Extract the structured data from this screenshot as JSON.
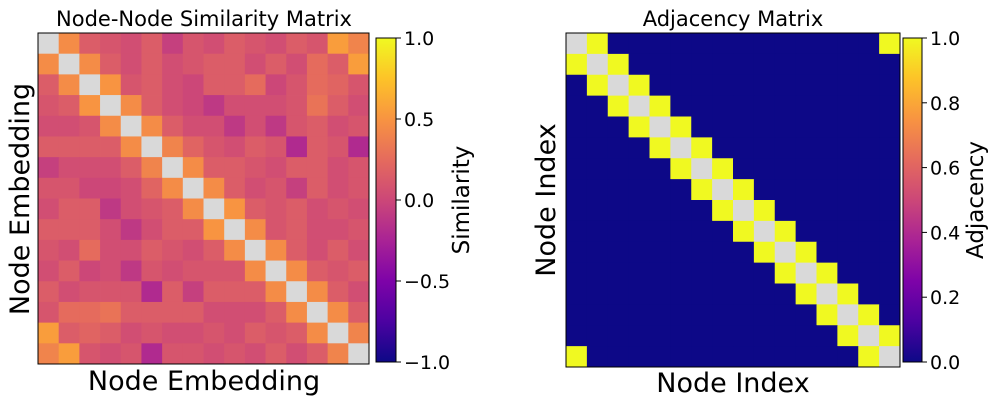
{
  "chart_data": [
    {
      "type": "heatmap",
      "title": "Node-Node Similarity Matrix",
      "xlabel": "Node Embedding",
      "ylabel": "Node Embedding",
      "colorbar_label": "Similarity",
      "colormap": "plasma",
      "vmin": -1.0,
      "vmax": 1.0,
      "colorbar_ticks": [
        1.0,
        0.5,
        0.0,
        -0.5,
        -1.0
      ],
      "colorbar_tick_labels": [
        "1.0",
        "0.5",
        "0.0",
        "−0.5",
        "−1.0"
      ],
      "diagonal_color": "#d9d9d9",
      "size": 16,
      "values": [
        [
          null,
          0.45,
          0.15,
          0.1,
          0.05,
          0.15,
          -0.05,
          0.1,
          0.05,
          0.15,
          0.1,
          0.05,
          0.15,
          0.1,
          0.55,
          0.4
        ],
        [
          0.45,
          null,
          0.45,
          0.15,
          0.05,
          0.15,
          0.05,
          0.1,
          0.15,
          0.15,
          0.05,
          0.15,
          0.05,
          0.25,
          0.15,
          0.55
        ],
        [
          0.15,
          0.45,
          null,
          0.5,
          0.1,
          0.15,
          0.05,
          0.0,
          0.15,
          0.15,
          0.25,
          0.0,
          0.1,
          0.25,
          0.2,
          0.1
        ],
        [
          0.1,
          0.15,
          0.5,
          null,
          0.45,
          0.15,
          0.05,
          0.0,
          -0.1,
          0.05,
          0.05,
          0.05,
          0.1,
          0.3,
          0.15,
          0.05
        ],
        [
          0.05,
          0.05,
          0.1,
          0.45,
          null,
          0.45,
          0.15,
          0.05,
          0.05,
          -0.1,
          0.05,
          -0.1,
          0.1,
          0.15,
          0.05,
          0.1
        ],
        [
          0.15,
          0.15,
          0.15,
          0.15,
          0.45,
          null,
          0.4,
          0.2,
          0.1,
          0.05,
          0.15,
          0.1,
          -0.2,
          0.15,
          0.1,
          -0.2
        ],
        [
          -0.05,
          0.05,
          0.05,
          0.05,
          0.15,
          0.4,
          null,
          0.45,
          0.15,
          0.15,
          0.1,
          0.05,
          0.15,
          0.15,
          0.05,
          0.1
        ],
        [
          0.1,
          0.1,
          0.0,
          0.0,
          0.05,
          0.2,
          0.45,
          null,
          0.45,
          0.15,
          0.05,
          0.1,
          -0.05,
          0.15,
          0.05,
          0.1
        ],
        [
          0.05,
          0.15,
          0.15,
          -0.1,
          0.05,
          0.1,
          0.15,
          0.45,
          null,
          0.5,
          0.15,
          0.1,
          0.15,
          0.05,
          0.1,
          0.05
        ],
        [
          0.15,
          0.15,
          0.15,
          0.05,
          -0.1,
          0.05,
          0.15,
          0.15,
          0.5,
          null,
          0.45,
          0.1,
          0.15,
          0.05,
          0.05,
          0.1
        ],
        [
          0.1,
          0.05,
          0.25,
          0.05,
          0.05,
          0.15,
          0.1,
          0.05,
          0.15,
          0.45,
          null,
          0.45,
          0.15,
          0.05,
          0.15,
          0.05
        ],
        [
          0.05,
          0.15,
          0.0,
          0.05,
          -0.1,
          0.1,
          0.05,
          0.1,
          0.1,
          0.1,
          0.45,
          null,
          0.45,
          0.15,
          0.1,
          0.15
        ],
        [
          0.15,
          0.05,
          0.1,
          0.1,
          0.1,
          -0.2,
          0.15,
          -0.05,
          0.15,
          0.15,
          0.15,
          0.45,
          null,
          0.45,
          0.15,
          0.05
        ],
        [
          0.1,
          0.25,
          0.25,
          0.3,
          0.15,
          0.15,
          0.15,
          0.15,
          0.05,
          0.05,
          0.05,
          0.15,
          0.45,
          null,
          0.45,
          0.15
        ],
        [
          0.55,
          0.15,
          0.2,
          0.15,
          0.05,
          0.1,
          0.05,
          0.05,
          0.1,
          0.05,
          0.15,
          0.1,
          0.15,
          0.45,
          null,
          0.4
        ],
        [
          0.4,
          0.55,
          0.1,
          0.05,
          0.1,
          -0.2,
          0.1,
          0.1,
          0.05,
          0.1,
          0.05,
          0.15,
          0.05,
          0.15,
          0.4,
          null
        ]
      ]
    },
    {
      "type": "heatmap",
      "title": "Adjacency Matrix",
      "xlabel": "Node Index",
      "ylabel": "Node Index",
      "colorbar_label": "Adjacency",
      "colormap": "plasma",
      "vmin": 0.0,
      "vmax": 1.0,
      "colorbar_ticks": [
        1.0,
        0.8,
        0.6,
        0.4,
        0.2,
        0.0
      ],
      "colorbar_tick_labels": [
        "1.0",
        "0.8",
        "0.6",
        "0.4",
        "0.2",
        "0.0"
      ],
      "diagonal_color": "#d9d9d9",
      "size": 16,
      "structure": "ring",
      "edges_per_node": "i-1, i+1 (mod 16)",
      "on_value": 1.0,
      "off_value": 0.0
    }
  ]
}
